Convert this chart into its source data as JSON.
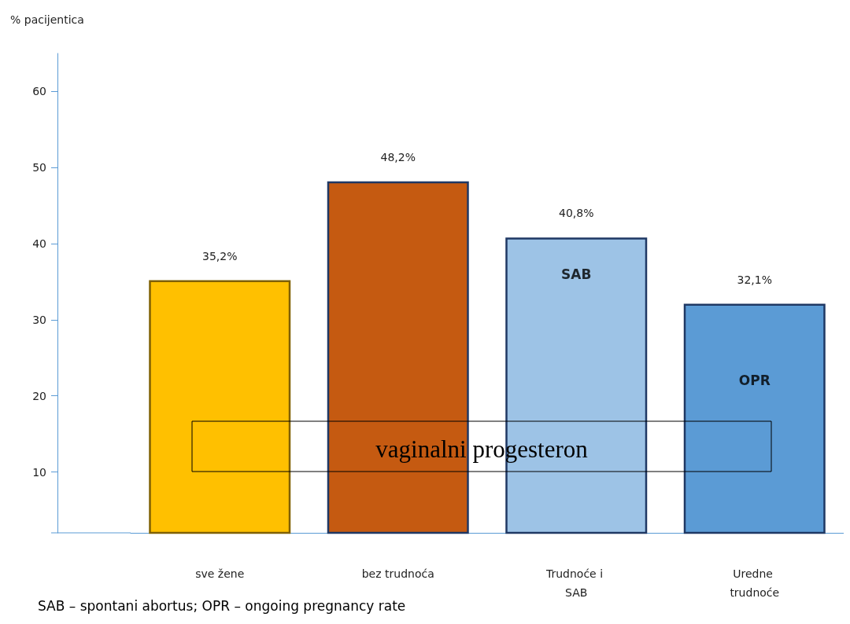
{
  "chart_data": {
    "type": "bar",
    "ylabel": "% pacijentica",
    "categories": [
      "sve žene",
      "bez trudnoća",
      "Trudnoće i SAB",
      "Uredne trudnoće"
    ],
    "values": [
      35.2,
      48.2,
      40.8,
      32.1
    ],
    "value_labels": [
      "35,2%",
      "48,2%",
      "40,8%",
      "32,1%"
    ],
    "colors": [
      "#ffc000",
      "#c55a11",
      "#9dc3e6",
      "#5b9bd5"
    ],
    "ylim": [
      2,
      65
    ],
    "yticks": [
      10,
      20,
      30,
      40,
      50,
      60
    ],
    "grid": false,
    "annotations": [
      "SAB",
      "OPR",
      "vaginalni progesteron",
      "SAB – spontani abortus; OPR – ongoing pregnancy rate"
    ]
  }
}
